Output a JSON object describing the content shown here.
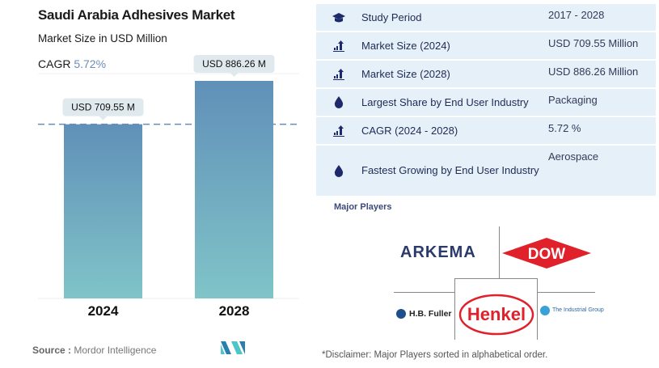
{
  "header": {
    "title": "Saudi Arabia Adhesives Market",
    "subtitle": "Market Size in USD Million",
    "cagr_label": "CAGR",
    "cagr_value": "5.72%"
  },
  "chart_data": {
    "type": "bar",
    "title": "Saudi Arabia Adhesives Market",
    "ylabel": "Market Size in USD Million",
    "categories": [
      "2024",
      "2028"
    ],
    "values": [
      709.55,
      886.26
    ],
    "data_labels": [
      "USD 709.55 M",
      "USD 886.26 M"
    ],
    "ylim": [
      0,
      886.26
    ],
    "grid": false
  },
  "footer": {
    "source_label": "Source :",
    "source_value": "Mordor Intelligence"
  },
  "summary": [
    {
      "icon": "graduation-cap",
      "label": "Study Period",
      "value": "2017 - 2028"
    },
    {
      "icon": "bar-chart-up",
      "label": "Market Size (2024)",
      "value": "USD 709.55 Million"
    },
    {
      "icon": "bar-chart-up",
      "label": "Market Size (2028)",
      "value": "USD 886.26 Million"
    },
    {
      "icon": "drop",
      "label": "Largest Share by End User Industry",
      "value": "Packaging"
    },
    {
      "icon": "bar-chart-up",
      "label": "CAGR (2024 - 2028)",
      "value": "5.72 %"
    },
    {
      "icon": "drop",
      "label": "Fastest Growing by End User Industry",
      "value": "Aerospace"
    }
  ],
  "players": {
    "heading": "Major Players",
    "logos": [
      "ARKEMA",
      "DOW",
      "Henkel",
      "H.B. Fuller",
      "The Industrial Group"
    ],
    "disclaimer": "*Disclaimer: Major Players sorted in alphabetical order."
  },
  "colors": {
    "bar_top": "#6090b8",
    "bar_bottom": "#80c4c8",
    "table_bg": "#e6f0f8",
    "accent": "#6b8db5"
  }
}
